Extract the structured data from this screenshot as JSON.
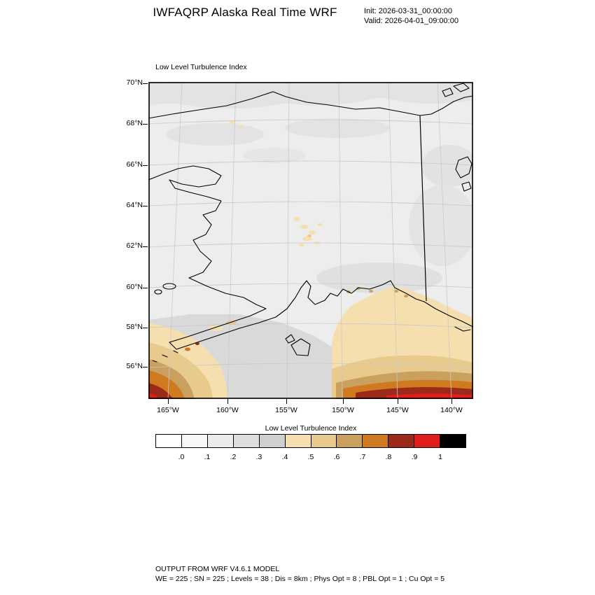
{
  "header": {
    "title": "IWFAQRP Alaska Real Time WRF",
    "init_label": "Init: 2026-03-31_00:00:00",
    "valid_label": "Valid: 2026-04-01_09:00:00"
  },
  "map": {
    "field_label": "Low Level Turbulence Index",
    "lat_ticks": [
      "70°N",
      "68°N",
      "66°N",
      "64°N",
      "62°N",
      "60°N",
      "58°N",
      "56°N"
    ],
    "lon_ticks": [
      "165°W",
      "160°W",
      "155°W",
      "150°W",
      "145°W",
      "140°W"
    ]
  },
  "colorbar": {
    "title": "Low Level Turbulence Index",
    "tick_labels": [
      ".0",
      ".1",
      ".2",
      ".3",
      ".4",
      ".5",
      ".6",
      ".7",
      ".8",
      ".9",
      "1"
    ],
    "colors": [
      "#ffffff",
      "#f7f7f7",
      "#ececec",
      "#dedede",
      "#cfcfcf",
      "#f5dfae",
      "#e8cb8c",
      "#c9a05e",
      "#d07a1f",
      "#9b2a1a",
      "#e01e1e",
      "#000000"
    ]
  },
  "footer": {
    "line1": "OUTPUT FROM WRF V4.6.1 MODEL",
    "line2": "WE = 225 ; SN = 225 ; Levels = 38 ; Dis = 8km ; Phys Opt = 8 ; PBL Opt = 1 ; Cu Opt = 5"
  },
  "chart_data": {
    "type": "heatmap",
    "title": "Low Level Turbulence Index",
    "model_run": {
      "model": "IWFAQRP Alaska Real Time WRF",
      "init": "2026-03-31_00:00:00",
      "valid": "2026-04-01_09:00:00"
    },
    "x_ticks": [
      "165°W",
      "160°W",
      "155°W",
      "150°W",
      "145°W",
      "140°W"
    ],
    "y_ticks": [
      "70°N",
      "68°N",
      "66°N",
      "64°N",
      "62°N",
      "60°N",
      "58°N",
      "56°N"
    ],
    "colorbar_title": "Low Level Turbulence Index",
    "colorbar_levels": [
      0,
      0.1,
      0.2,
      0.3,
      0.4,
      0.5,
      0.6,
      0.7,
      0.8,
      0.9,
      1
    ],
    "colorbar_colors": [
      "#ffffff",
      "#f7f7f7",
      "#ececec",
      "#dedede",
      "#cfcfcf",
      "#f5dfae",
      "#e8cb8c",
      "#c9a05e",
      "#d07a1f",
      "#9b2a1a",
      "#e01e1e",
      "#000000"
    ],
    "legend_position": "bottom",
    "features": [
      {
        "region": "Interior and northern Alaska",
        "index_range": [
          0.0,
          0.3
        ]
      },
      {
        "region": "Scattered patches over the Alaska Range and central interior",
        "index_range": [
          0.4,
          0.5
        ]
      },
      {
        "region": "Gulf of Alaska along the southern map edge, banded maximum toward the boundary",
        "index_range": [
          0.4,
          1.0
        ]
      },
      {
        "region": "Southwest corner near the Aleutian Islands, banded maximum toward the corner",
        "index_range": [
          0.4,
          1.0
        ]
      }
    ],
    "model_config": {
      "WE": 225,
      "SN": 225,
      "Levels": 38,
      "Dis": "8km",
      "Phys Opt": 8,
      "PBL Opt": 1,
      "Cu Opt": 5
    }
  }
}
